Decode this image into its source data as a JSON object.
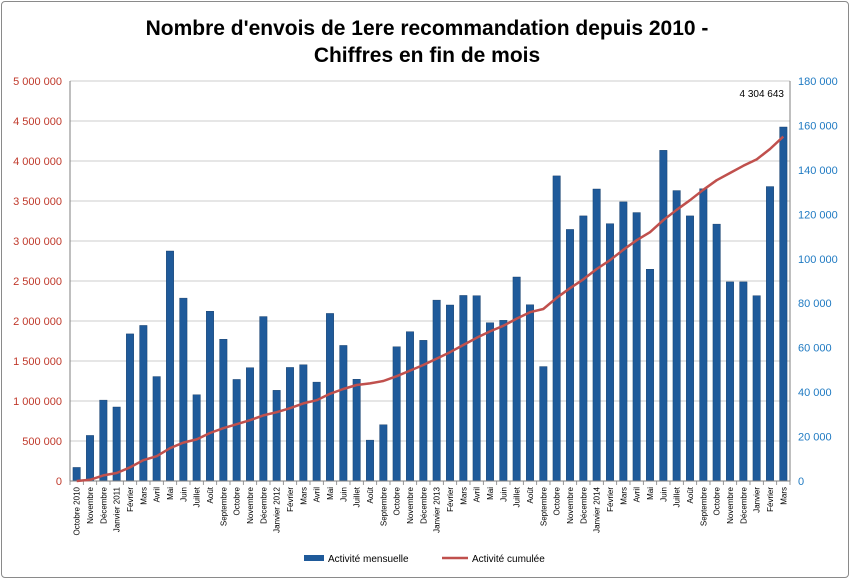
{
  "chart_data": {
    "type": "bar",
    "title": "Nombre d'envois de 1ere recommandation depuis 2010 - Chiffres en fin de mois",
    "title_lines": [
      "Nombre d'envois de 1ere recommandation depuis 2010 -",
      "Chiffres en fin de mois"
    ],
    "categories": [
      "Octobre 2010",
      "Novembre",
      "Décembre",
      "Janvier 2011",
      "Février",
      "Mars",
      "Avril",
      "Mai",
      "Juin",
      "Juillet",
      "Août",
      "Septembre",
      "Octobre",
      "Novembre",
      "Décembre",
      "Janvier 2012",
      "Février",
      "Mars",
      "Avril",
      "Mai",
      "Juin",
      "Juillet",
      "Août",
      "Septembre",
      "Octobre",
      "Novembre",
      "Décembre",
      "Janvier 2013",
      "Février",
      "Mars",
      "Avril",
      "Mai",
      "Juin",
      "Juillet",
      "Août",
      "Septembre",
      "Octobre",
      "Novembre",
      "Décembre",
      "Janvier 2014",
      "Février",
      "Mars",
      "Avril",
      "Mai",
      "Juin",
      "Juillet",
      "Août",
      "Septembre",
      "Octobre",
      "Novembre",
      "Décembre",
      "Janvier",
      "Février",
      "Mars"
    ],
    "series": [
      {
        "name": "Activité mensuelle",
        "axis": "right",
        "type": "bar",
        "color": "#1F5A9A",
        "values": [
          6100,
          20500,
          36400,
          33300,
          66200,
          70000,
          47000,
          103500,
          82300,
          38800,
          76400,
          63800,
          45700,
          51000,
          74000,
          40800,
          51100,
          52300,
          44500,
          75400,
          61000,
          45800,
          18400,
          25300,
          60400,
          67200,
          63300,
          81400,
          79200,
          83500,
          83400,
          71200,
          72300,
          91800,
          79300,
          51500,
          137300,
          113200,
          119300,
          131400,
          115800,
          125600,
          120800,
          95300,
          148800,
          130700,
          119300,
          131500,
          115600,
          89600,
          89600,
          83400,
          132500,
          159300
        ]
      },
      {
        "name": "Activité cumulée",
        "axis": "left",
        "type": "line",
        "color": "#C0504D",
        "values": [
          0,
          15000,
          70000,
          100000,
          170000,
          260000,
          310000,
          410000,
          480000,
          520000,
          600000,
          660000,
          710000,
          760000,
          820000,
          860000,
          910000,
          970000,
          1010000,
          1090000,
          1150000,
          1200000,
          1220000,
          1250000,
          1310000,
          1380000,
          1450000,
          1530000,
          1610000,
          1700000,
          1790000,
          1870000,
          1940000,
          2030000,
          2110000,
          2150000,
          2290000,
          2410000,
          2520000,
          2650000,
          2760000,
          2890000,
          3010000,
          3110000,
          3260000,
          3390000,
          3510000,
          3640000,
          3760000,
          3850000,
          3940000,
          4020000,
          4150000,
          4304643
        ]
      }
    ],
    "y_left": {
      "ylim": [
        0,
        5000000
      ],
      "ticks": [
        "0",
        "500 000",
        "1 000 000",
        "1 500 000",
        "2 000 000",
        "2 500 000",
        "3 000 000",
        "3 500 000",
        "4 000 000",
        "4 500 000",
        "5 000 000"
      ],
      "color": "#C0392B"
    },
    "y_right": {
      "ylim": [
        0,
        180000
      ],
      "ticks": [
        "0",
        "20 000",
        "40 000",
        "60 000",
        "80 000",
        "100 000",
        "120 000",
        "140 000",
        "160 000",
        "180 000"
      ],
      "color": "#1F7AC2"
    },
    "annotation": "4 304 643",
    "grid": true,
    "legend_position": "bottom"
  }
}
